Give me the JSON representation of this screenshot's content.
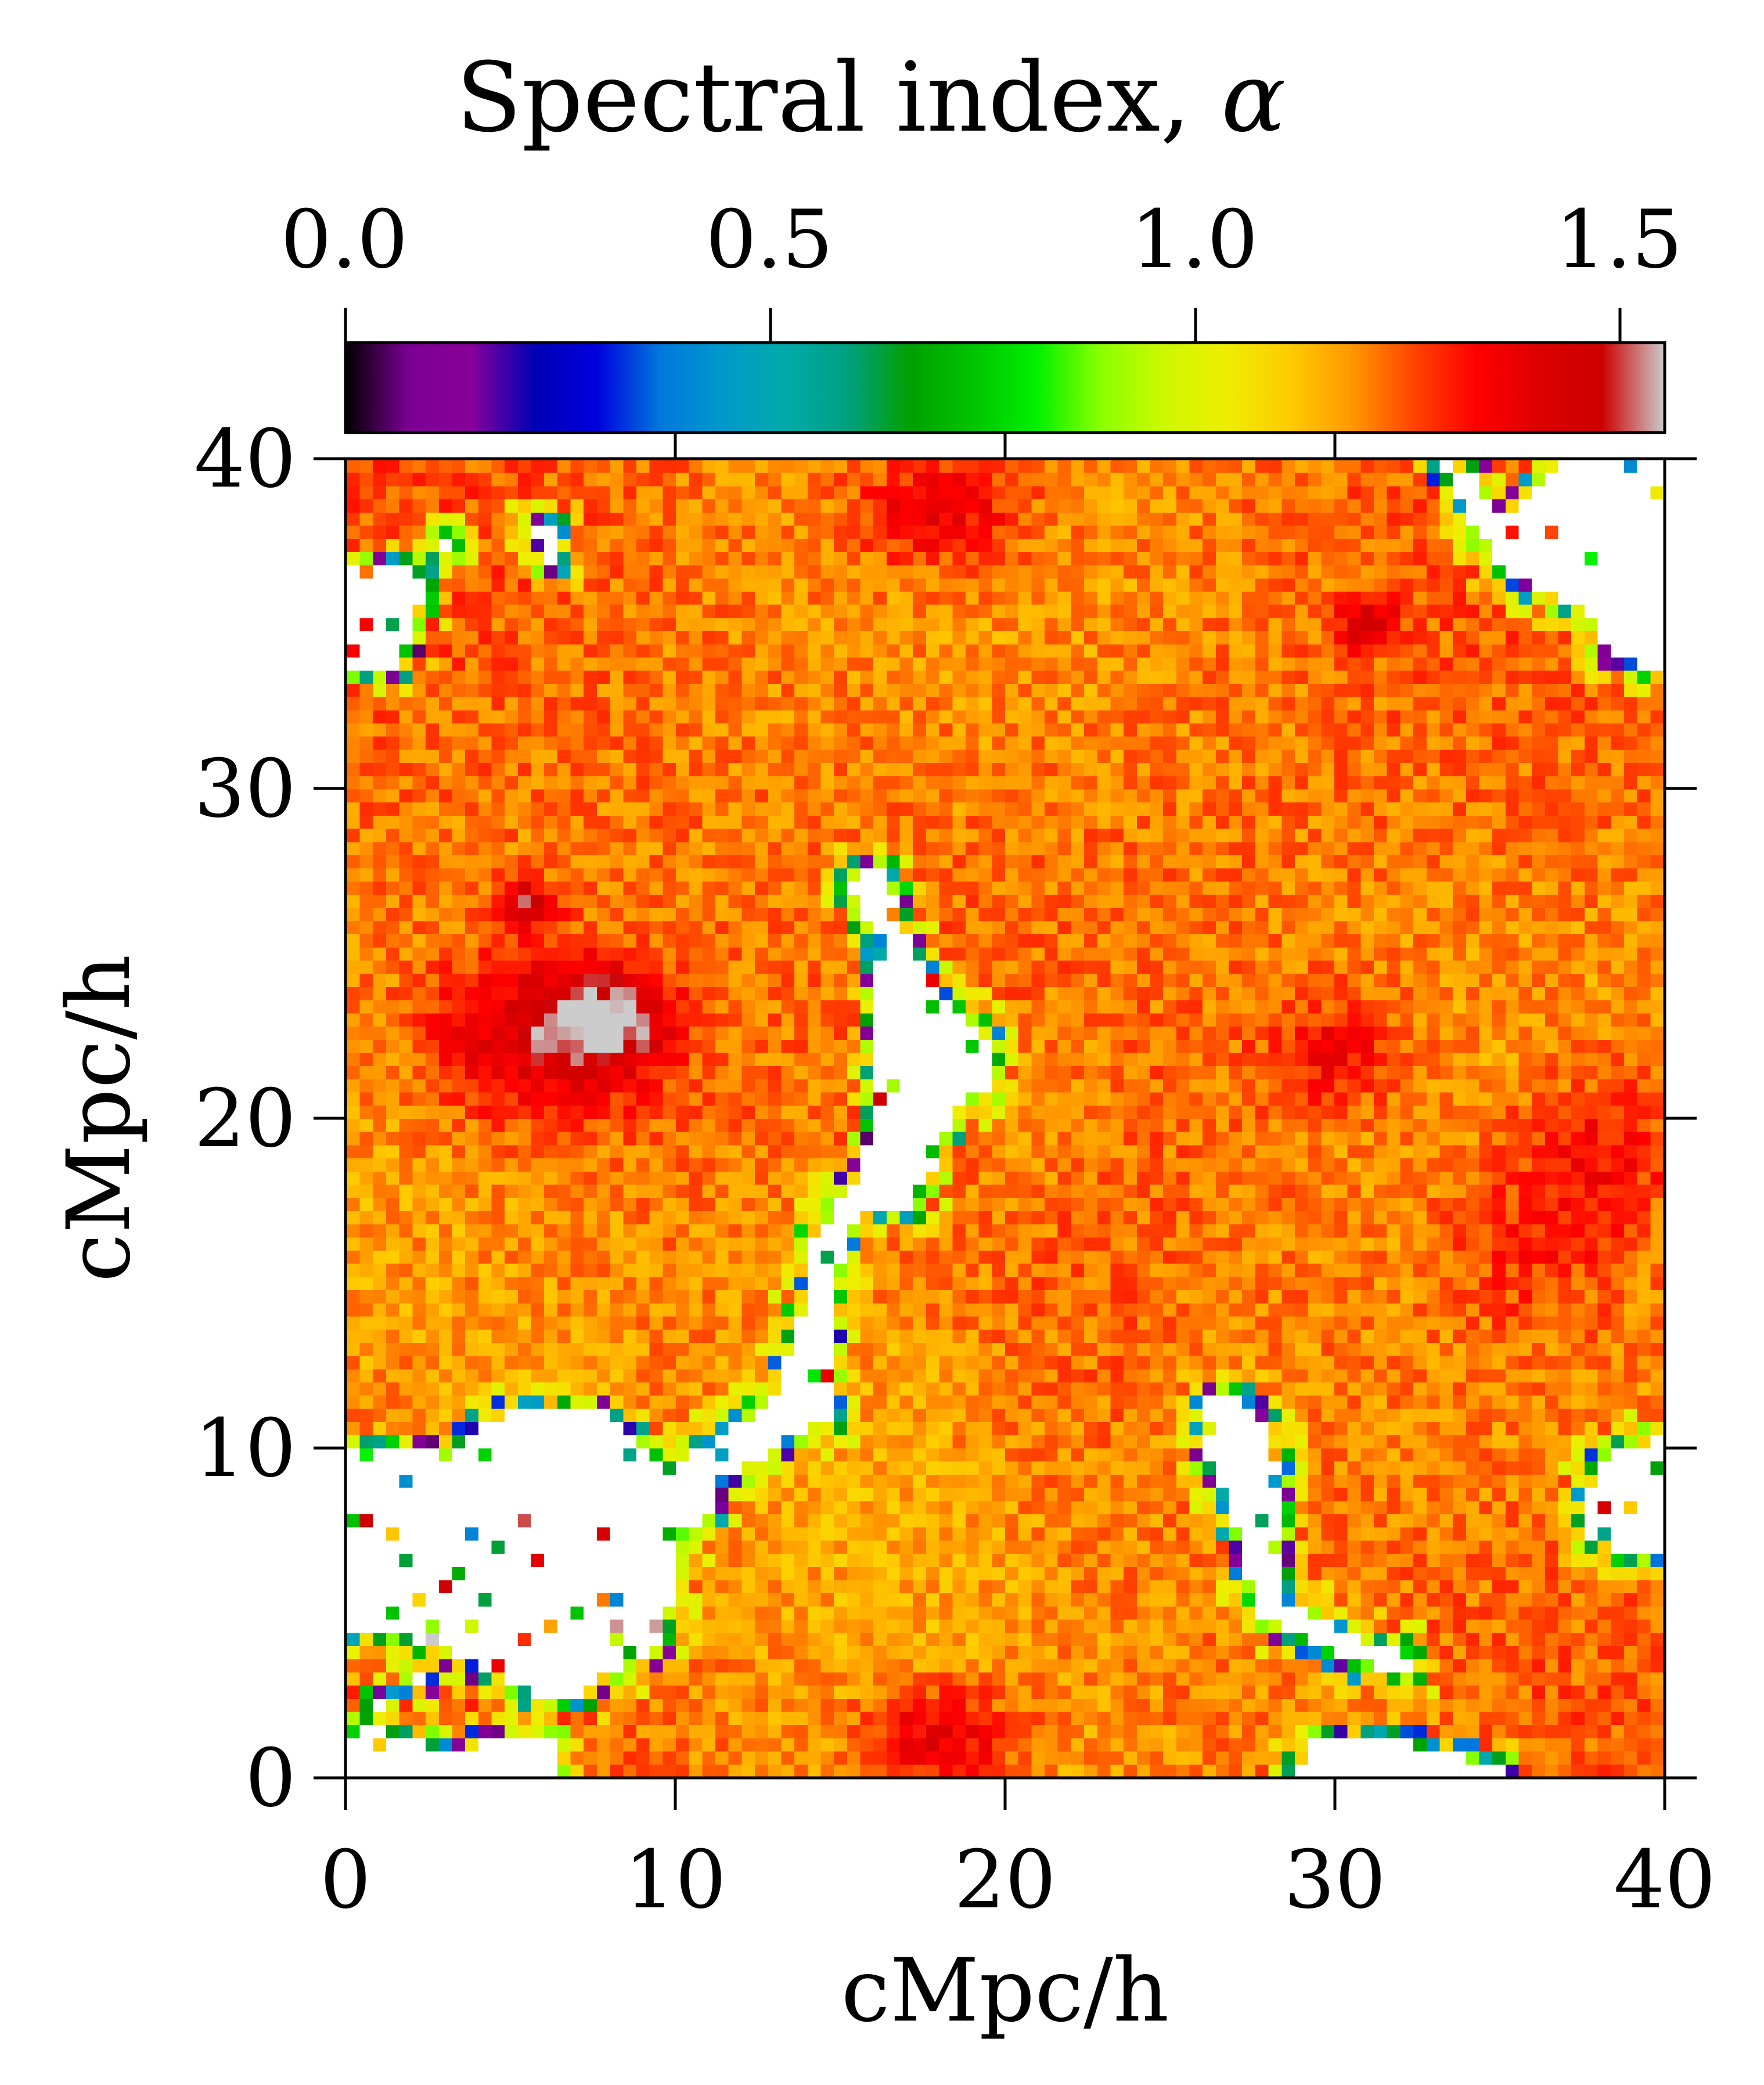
{
  "chart_data": {
    "type": "heatmap",
    "title": "",
    "colorbar": {
      "label_text": "Spectral index, ",
      "label_symbol": "α",
      "range": [
        0.0,
        1.5
      ],
      "ticks": [
        "0.0",
        "0.5",
        "1.0",
        "1.5"
      ],
      "tick_values": [
        0.0,
        0.5,
        1.0,
        1.5
      ],
      "colormap": "nipy_spectral",
      "position": "top",
      "color_stops": [
        "#000000",
        "#7a0092",
        "#880099",
        "#0000b4",
        "#0000dd",
        "#0077dd",
        "#0099cc",
        "#00aaaa",
        "#00a080",
        "#00a000",
        "#00c400",
        "#00f000",
        "#88ff00",
        "#ccf800",
        "#eeee00",
        "#ffcc00",
        "#ff9900",
        "#ff4400",
        "#ff0000",
        "#dd0000",
        "#cc0000",
        "#cccccc"
      ]
    },
    "xlabel": "cMpc/h",
    "ylabel": "cMpc/h",
    "xlim": [
      0,
      40
    ],
    "ylim": [
      0,
      40
    ],
    "xticks": [
      "0",
      "10",
      "20",
      "30",
      "40"
    ],
    "yticks": [
      "0",
      "10",
      "20",
      "30",
      "40"
    ],
    "grid": false,
    "resolution": 100,
    "background_alpha": 1.17,
    "hot_spots": [
      {
        "x": 6.0,
        "y": 22.5,
        "sx": 3.5,
        "sy": 2.6,
        "alpha": 1.42
      },
      {
        "x": 8.0,
        "y": 23.0,
        "sx": 1.6,
        "sy": 1.2,
        "alpha": 1.45
      },
      {
        "x": 5.5,
        "y": 26.5,
        "sx": 0.8,
        "sy": 0.7,
        "alpha": 1.44
      },
      {
        "x": 18.0,
        "y": 38.5,
        "sx": 2.6,
        "sy": 1.8,
        "alpha": 1.36
      },
      {
        "x": 18.0,
        "y": 1.2,
        "sx": 2.4,
        "sy": 1.6,
        "alpha": 1.38
      },
      {
        "x": 31.0,
        "y": 35.0,
        "sx": 0.8,
        "sy": 0.7,
        "alpha": 1.45
      },
      {
        "x": 30.0,
        "y": 22.0,
        "sx": 2.0,
        "sy": 1.6,
        "alpha": 1.31
      },
      {
        "x": 38.0,
        "y": 19.0,
        "sx": 2.5,
        "sy": 2.5,
        "alpha": 1.3
      },
      {
        "x": 36.0,
        "y": 16.0,
        "sx": 3.0,
        "sy": 3.0,
        "alpha": 1.27
      }
    ],
    "low_spots": [
      {
        "x": 16.0,
        "y": 11.0,
        "sx": 5.0,
        "sy": 9.0,
        "alpha": 1.06
      },
      {
        "x": 21.0,
        "y": 20.5,
        "sx": 2.5,
        "sy": 3.0,
        "alpha": 1.08
      },
      {
        "x": 6.0,
        "y": 12.0,
        "sx": 2.5,
        "sy": 1.5,
        "alpha": 1.1
      },
      {
        "x": 26.5,
        "y": 11.5,
        "sx": 2.0,
        "sy": 3.0,
        "alpha": 1.1
      },
      {
        "x": 31.0,
        "y": 2.0,
        "sx": 3.0,
        "sy": 1.5,
        "alpha": 1.09
      }
    ],
    "empty_regions": [
      {
        "points": [
          [
            15.2,
            27.3
          ],
          [
            16.2,
            27.5
          ],
          [
            17.2,
            25.3
          ],
          [
            18.7,
            23.0
          ],
          [
            19.8,
            21.8
          ],
          [
            19.5,
            20.8
          ],
          [
            18.5,
            20.5
          ],
          [
            17.8,
            18.5
          ],
          [
            17.0,
            17.2
          ],
          [
            15.8,
            17.0
          ],
          [
            15.2,
            16.5
          ],
          [
            14.8,
            14.8
          ],
          [
            15.0,
            13.0
          ],
          [
            14.7,
            11.0
          ],
          [
            14.0,
            10.6
          ],
          [
            13.2,
            10.4
          ],
          [
            12.5,
            9.6
          ],
          [
            11.5,
            9.3
          ],
          [
            11.0,
            8.0
          ],
          [
            10.2,
            7.0
          ],
          [
            10.0,
            5.0
          ],
          [
            9.2,
            3.8
          ],
          [
            8.0,
            3.2
          ],
          [
            7.0,
            2.4
          ],
          [
            5.5,
            2.6
          ],
          [
            3.8,
            3.6
          ],
          [
            2.0,
            4.2
          ],
          [
            0.0,
            4.5
          ],
          [
            0.0,
            9.8
          ],
          [
            3.5,
            10.0
          ],
          [
            5.0,
            11.3
          ],
          [
            8.0,
            11.2
          ],
          [
            9.8,
            9.2
          ],
          [
            11.5,
            10.6
          ],
          [
            13.0,
            11.4
          ],
          [
            13.8,
            13.8
          ],
          [
            14.2,
            16.5
          ],
          [
            15.5,
            18.0
          ],
          [
            15.9,
            19.8
          ],
          [
            16.0,
            23.2
          ],
          [
            15.8,
            25.8
          ]
        ]
      },
      {
        "points": [
          [
            0.0,
            33.6
          ],
          [
            1.6,
            33.8
          ],
          [
            2.1,
            35.0
          ],
          [
            2.3,
            36.5
          ],
          [
            1.0,
            37.0
          ],
          [
            0.0,
            37.0
          ]
        ]
      },
      {
        "points": [
          [
            5.5,
            37.8
          ],
          [
            6.2,
            37.0
          ],
          [
            6.8,
            36.5
          ],
          [
            6.2,
            37.9
          ]
        ]
      },
      {
        "points": [
          [
            26.2,
            11.8
          ],
          [
            27.5,
            11.3
          ],
          [
            28.5,
            9.6
          ],
          [
            28.2,
            7.0
          ],
          [
            28.6,
            5.3
          ],
          [
            30.2,
            4.5
          ],
          [
            31.5,
            4.0
          ],
          [
            32.4,
            3.4
          ],
          [
            31.3,
            3.1
          ],
          [
            29.5,
            4.0
          ],
          [
            27.8,
            4.9
          ],
          [
            27.2,
            6.5
          ],
          [
            26.8,
            8.5
          ],
          [
            26.0,
            10.0
          ]
        ]
      },
      {
        "points": [
          [
            28.8,
            0.0
          ],
          [
            29.3,
            1.1
          ],
          [
            31.0,
            1.3
          ],
          [
            32.5,
            1.0
          ],
          [
            34.5,
            0.5
          ],
          [
            35.5,
            0.0
          ]
        ]
      },
      {
        "points": [
          [
            37.5,
            8.5
          ],
          [
            38.5,
            9.9
          ],
          [
            40.0,
            10.3
          ],
          [
            40.0,
            6.8
          ],
          [
            39.0,
            6.8
          ],
          [
            37.5,
            7.5
          ]
        ]
      },
      {
        "points": [
          [
            28.5,
            40.0
          ],
          [
            33.0,
            40.0
          ],
          [
            34.0,
            38.5
          ],
          [
            35.3,
            36.5
          ],
          [
            37.8,
            35.2
          ],
          [
            38.5,
            34.0
          ],
          [
            40.0,
            33.4
          ],
          [
            40.0,
            40.0
          ],
          [
            37.2,
            40.0
          ],
          [
            36.0,
            38.8
          ],
          [
            35.0,
            38.3
          ],
          [
            34.2,
            39.4
          ],
          [
            33.2,
            40.0
          ]
        ]
      },
      {
        "points": [
          [
            0.0,
            0.0
          ],
          [
            6.2,
            0.0
          ],
          [
            6.8,
            0.9
          ],
          [
            5.2,
            1.2
          ],
          [
            3.0,
            0.8
          ],
          [
            0.8,
            1.5
          ],
          [
            0.0,
            1.2
          ]
        ]
      }
    ],
    "isolated_blanks": [
      [
        37.5,
        37.5
      ],
      [
        38.2,
        36.0
      ],
      [
        36.3,
        37.5
      ],
      [
        3.0,
        37.5
      ],
      [
        4.0,
        10.5
      ],
      [
        11.0,
        9.0
      ],
      [
        2.0,
        3.0
      ],
      [
        1.0,
        2.0
      ]
    ],
    "noise_amplitude": 0.065
  }
}
